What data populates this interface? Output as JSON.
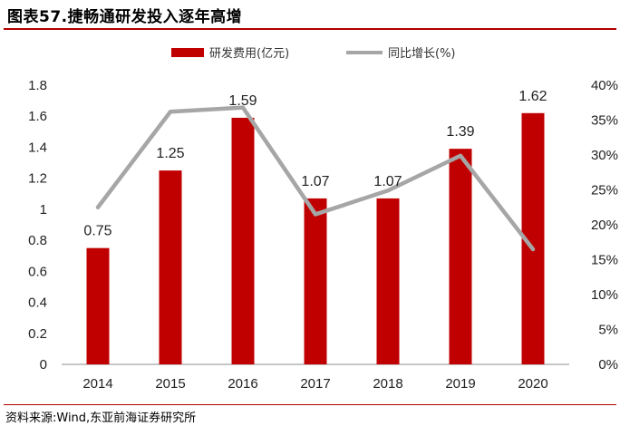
{
  "header": {
    "title": "图表57.捷畅通研发投入逐年高增"
  },
  "footer": {
    "source": "资料来源:Wind,东亚前海证券研究所"
  },
  "colors": {
    "bar": "#c00000",
    "line": "#a6a6a6",
    "accent_rule": "#b00000"
  },
  "chart_data": {
    "type": "bar",
    "title": "捷畅通研发投入逐年高增",
    "categories": [
      "2014",
      "2015",
      "2016",
      "2017",
      "2018",
      "2019",
      "2020"
    ],
    "series": [
      {
        "name": "研发费用(亿元)",
        "type": "bar",
        "axis": "left",
        "values": [
          0.75,
          1.25,
          1.59,
          1.07,
          1.07,
          1.39,
          1.62
        ],
        "labels": [
          "0.75",
          "1.25",
          "1.59",
          "1.07",
          "1.07",
          "1.39",
          "1.62"
        ]
      },
      {
        "name": "同比增长(%)",
        "type": "line",
        "axis": "right",
        "values": [
          22.5,
          36.2,
          36.8,
          21.5,
          24.9,
          29.9,
          16.5
        ]
      }
    ],
    "y_left": {
      "min": 0,
      "max": 1.8,
      "ticks": [
        "0",
        "0.2",
        "0.4",
        "0.6",
        "0.8",
        "1",
        "1.2",
        "1.4",
        "1.6",
        "1.8"
      ]
    },
    "y_right": {
      "min": 0,
      "max": 40,
      "ticks": [
        "0%",
        "5%",
        "10%",
        "15%",
        "20%",
        "25%",
        "30%",
        "35%",
        "40%"
      ]
    },
    "legend_position": "top-center",
    "grid": false
  }
}
